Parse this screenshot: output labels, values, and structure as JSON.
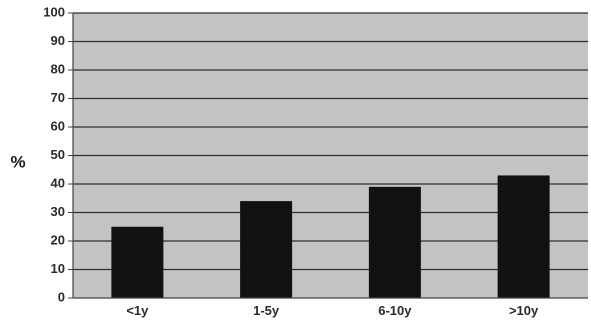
{
  "colors": {
    "plot_background": "#c3c3c3",
    "gridline": "#2e2e2e",
    "bar_fill": "#111111",
    "axis": "#444444"
  },
  "chart_data": {
    "type": "bar",
    "title": "",
    "xlabel": "",
    "ylabel": "%",
    "categories": [
      "<1y",
      "1-5y",
      "6-10y",
      ">10y"
    ],
    "values": [
      25,
      34,
      39,
      43
    ],
    "ylim": [
      0,
      100
    ],
    "yticks": [
      0,
      10,
      20,
      30,
      40,
      50,
      60,
      70,
      80,
      90,
      100
    ],
    "grid": true,
    "legend": "none"
  }
}
